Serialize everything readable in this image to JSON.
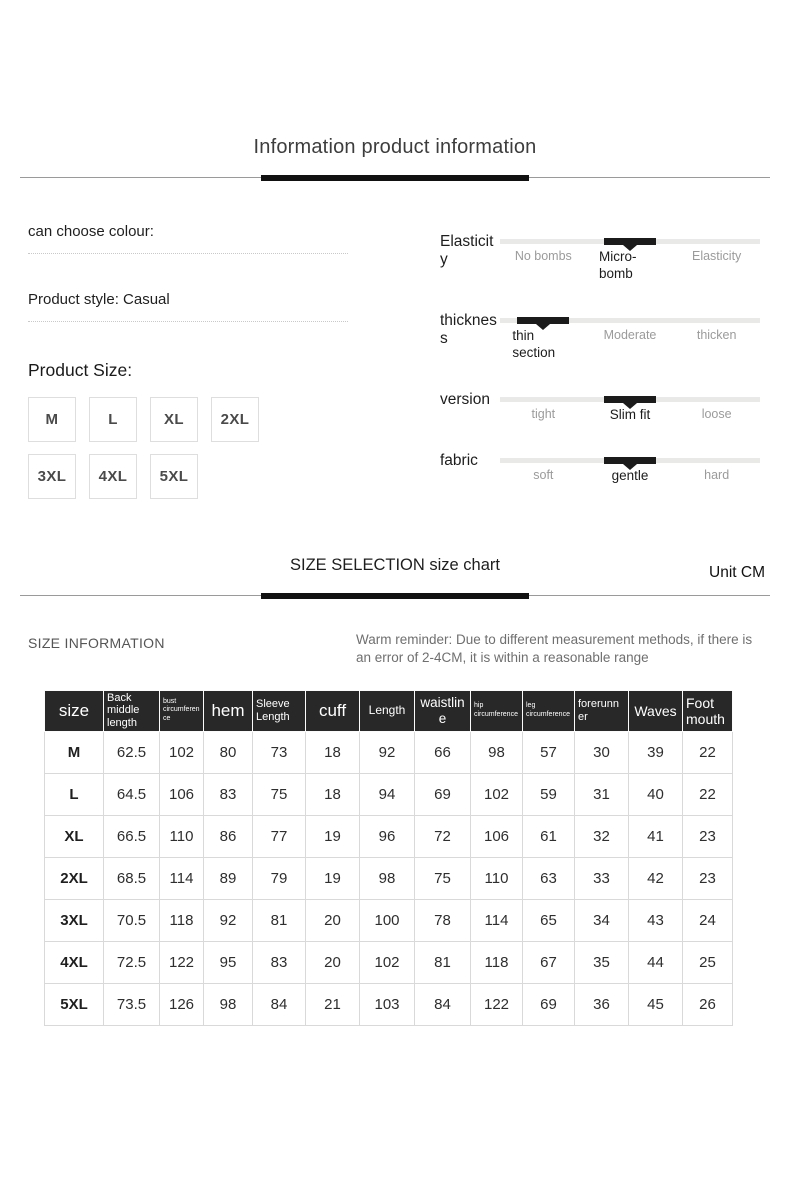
{
  "header": {
    "title": "Information product information"
  },
  "product": {
    "colour_label": "can choose colour:",
    "style_label": "Product style: Casual",
    "size_label": "Product Size:",
    "sizes": [
      "M",
      "L",
      "XL",
      "2XL",
      "3XL",
      "4XL",
      "5XL"
    ]
  },
  "attributes": [
    {
      "name": "Elasticity",
      "options": [
        "No bombs",
        "Micro-bomb",
        "Elasticity"
      ],
      "selected": 1
    },
    {
      "name": "thickness",
      "options": [
        "thin section",
        "Moderate",
        "thicken"
      ],
      "selected": 0
    },
    {
      "name": "version",
      "options": [
        "tight",
        "Slim fit",
        "loose"
      ],
      "selected": 1
    },
    {
      "name": "fabric",
      "options": [
        "soft",
        "gentle",
        "hard"
      ],
      "selected": 1
    }
  ],
  "size_section": {
    "title": "SIZE SELECTION size chart",
    "unit": "Unit CM",
    "info_label": "SIZE INFORMATION",
    "reminder": "Warm reminder: Due to different measurement methods, if there is an error of 2-4CM, it is within a reasonable range"
  },
  "chart_data": {
    "type": "table",
    "columns": [
      "size",
      "Back middle length",
      "bust circumference",
      "hem",
      "Sleeve Length",
      "cuff",
      "Length",
      "waistline",
      "hip circumference",
      "leg circumference",
      "forerunner",
      "Waves",
      "Foot mouth"
    ],
    "rows": [
      [
        "M",
        "62.5",
        "102",
        "80",
        "73",
        "18",
        "92",
        "66",
        "98",
        "57",
        "30",
        "39",
        "22"
      ],
      [
        "L",
        "64.5",
        "106",
        "83",
        "75",
        "18",
        "94",
        "69",
        "102",
        "59",
        "31",
        "40",
        "22"
      ],
      [
        "XL",
        "66.5",
        "110",
        "86",
        "77",
        "19",
        "96",
        "72",
        "106",
        "61",
        "32",
        "41",
        "23"
      ],
      [
        "2XL",
        "68.5",
        "114",
        "89",
        "79",
        "19",
        "98",
        "75",
        "110",
        "63",
        "33",
        "42",
        "23"
      ],
      [
        "3XL",
        "70.5",
        "118",
        "92",
        "81",
        "20",
        "100",
        "78",
        "114",
        "65",
        "34",
        "43",
        "24"
      ],
      [
        "4XL",
        "72.5",
        "122",
        "95",
        "83",
        "20",
        "102",
        "81",
        "118",
        "67",
        "35",
        "44",
        "25"
      ],
      [
        "5XL",
        "73.5",
        "126",
        "98",
        "84",
        "21",
        "103",
        "84",
        "122",
        "69",
        "36",
        "45",
        "26"
      ]
    ]
  }
}
